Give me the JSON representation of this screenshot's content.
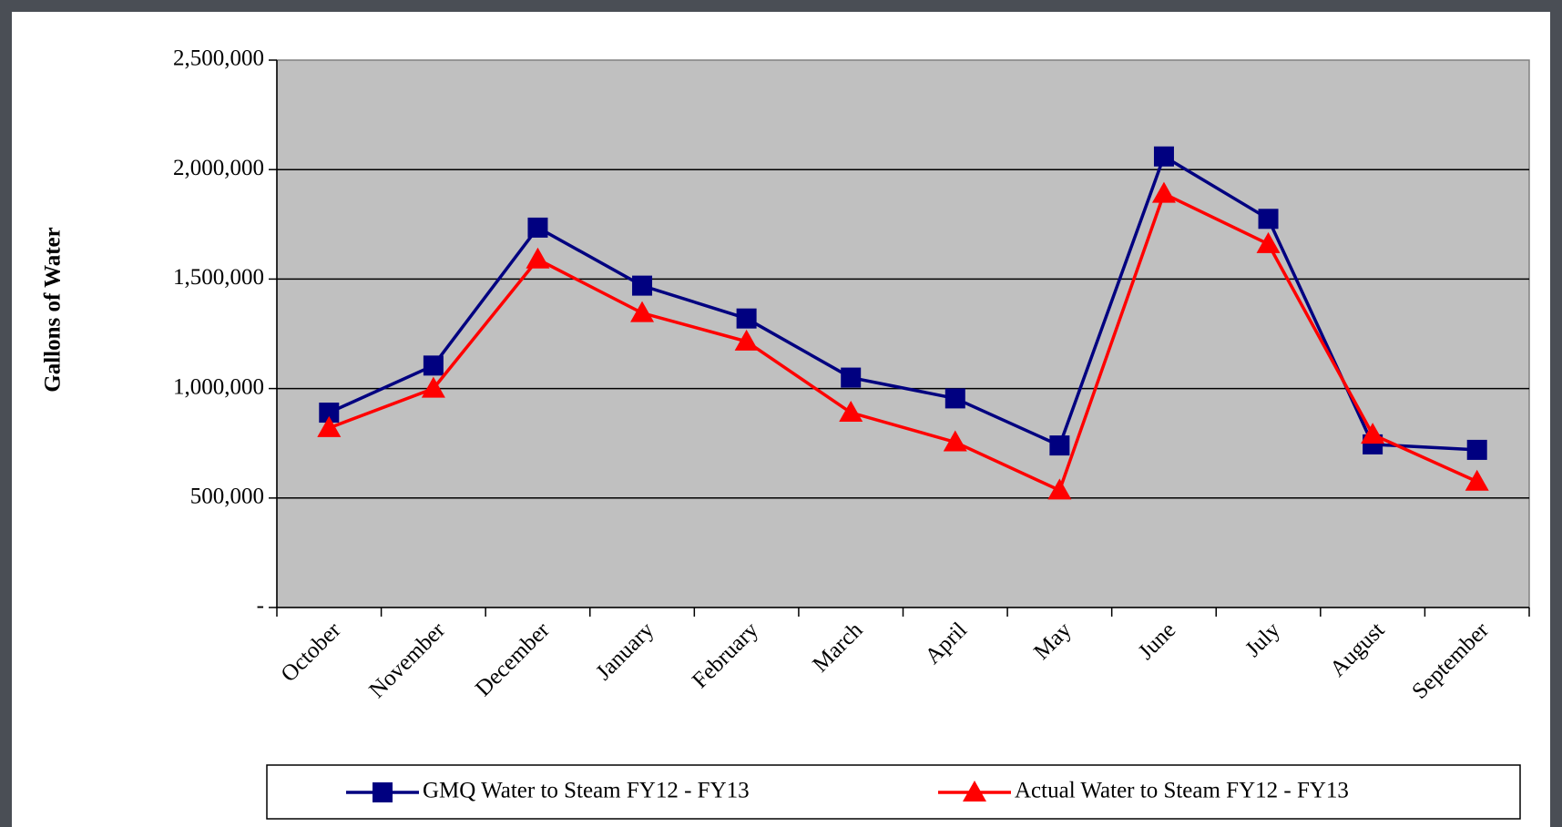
{
  "chart_data": {
    "type": "line",
    "y_label": "Gallons of Water",
    "categories": [
      "October",
      "November",
      "December",
      "January",
      "February",
      "March",
      "April",
      "May",
      "June",
      "July",
      "August",
      "September"
    ],
    "series": [
      {
        "name": "GMQ Water to Steam FY12 - FY13",
        "color": "#000080",
        "marker": "square",
        "values": [
          890000,
          1105000,
          1735000,
          1470000,
          1320000,
          1050000,
          955000,
          740000,
          2060000,
          1775000,
          745000,
          720000
        ]
      },
      {
        "name": "Actual Water to Steam FY12 - FY13",
        "color": "#ff0000",
        "marker": "triangle",
        "values": [
          820000,
          1000000,
          1590000,
          1345000,
          1215000,
          890000,
          755000,
          535000,
          1890000,
          1660000,
          790000,
          575000
        ]
      }
    ],
    "ylim": [
      0,
      2500000
    ],
    "yticks": [
      {
        "value": 0,
        "label": "-"
      },
      {
        "value": 500000,
        "label": "500,000"
      },
      {
        "value": 1000000,
        "label": "1,000,000"
      },
      {
        "value": 1500000,
        "label": "1,500,000"
      },
      {
        "value": 2000000,
        "label": "2,000,000"
      },
      {
        "value": 2500000,
        "label": "2,500,000"
      }
    ],
    "grid": true,
    "plot_background": "#c0c0c0",
    "legend": "bottom"
  }
}
